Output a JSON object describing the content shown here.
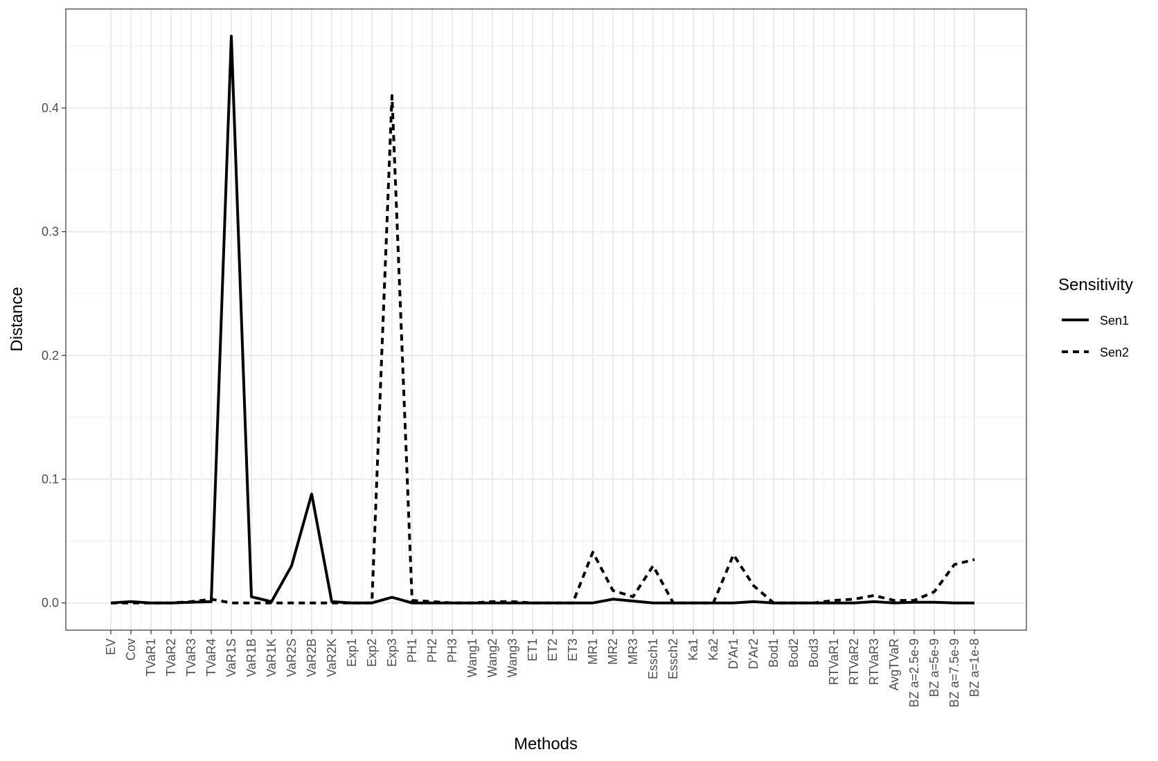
{
  "chart_data": {
    "type": "line",
    "xlabel": "Methods",
    "ylabel": "Distance",
    "ylim": [
      -0.022,
      0.48
    ],
    "yticks": [
      0.0,
      0.1,
      0.2,
      0.3,
      0.4
    ],
    "ytick_labels": [
      "0.0",
      "0.1",
      "0.2",
      "0.3",
      "0.4"
    ],
    "grid": true,
    "legend_position": "right",
    "legend_title": "Sensitivity",
    "categories": [
      "EV",
      "Cov",
      "TVaR1",
      "TVaR2",
      "TVaR3",
      "TVaR4",
      "VaR1S",
      "VaR1B",
      "VaR1K",
      "VaR2S",
      "VaR2B",
      "VaR2K",
      "Exp1",
      "Exp2",
      "Exp3",
      "PH1",
      "PH2",
      "PH3",
      "Wang1",
      "Wang2",
      "Wang3",
      "ET1",
      "ET2",
      "ET3",
      "MR1",
      "MR2",
      "MR3",
      "Essch1",
      "Essch2",
      "Ka1",
      "Ka2",
      "D'Ar1",
      "D'Ar2",
      "Bod1",
      "Bod2",
      "Bod3",
      "RTVaR1",
      "RTVaR2",
      "RTVaR3",
      "AvgTVaR",
      "BZ a=2.5e-9",
      "BZ a=5e-9",
      "BZ a=7.5e-9",
      "BZ a=1e-8"
    ],
    "series": [
      {
        "name": "Sen1",
        "line_style": "solid",
        "color": "#000000",
        "values": [
          0.0,
          0.001,
          0.0,
          0.0,
          0.0005,
          0.001,
          0.458,
          0.005,
          0.001,
          0.03,
          0.088,
          0.001,
          0.0,
          0.0,
          0.0045,
          0.0,
          0.0,
          0.0,
          0.0,
          0.0,
          0.0,
          0.0,
          0.0,
          0.0,
          0.0,
          0.003,
          0.0015,
          0.0,
          0.0,
          0.0,
          0.0,
          0.0,
          0.001,
          0.0,
          0.0,
          0.0,
          0.0,
          0.0,
          0.001,
          0.0,
          0.0005,
          0.0005,
          0.0,
          0.0
        ]
      },
      {
        "name": "Sen2",
        "line_style": "dashed",
        "color": "#000000",
        "values": [
          0.0,
          0.0,
          0.0,
          0.0,
          0.001,
          0.003,
          0.0,
          0.0,
          0.0,
          0.0,
          0.0,
          0.0,
          0.0,
          0.0,
          0.41,
          0.002,
          0.001,
          0.0,
          0.0,
          0.001,
          0.001,
          0.0,
          0.0,
          0.0,
          0.041,
          0.01,
          0.005,
          0.03,
          0.0,
          0.0,
          0.0,
          0.039,
          0.014,
          0.0,
          0.0,
          0.0,
          0.002,
          0.003,
          0.006,
          0.002,
          0.002,
          0.009,
          0.031,
          0.035
        ]
      }
    ]
  }
}
